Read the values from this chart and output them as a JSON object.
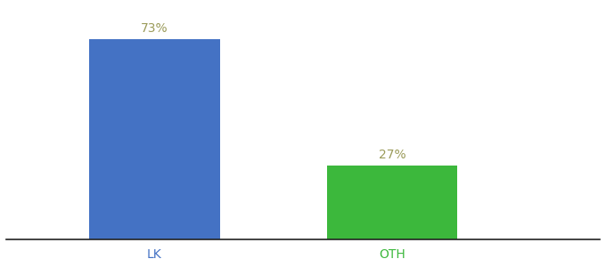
{
  "categories": [
    "LK",
    "OTH"
  ],
  "values": [
    73,
    27
  ],
  "bar_colors": [
    "#4472c4",
    "#3cb83c"
  ],
  "label_texts": [
    "73%",
    "27%"
  ],
  "ylim": [
    0,
    85
  ],
  "background_color": "#ffffff",
  "lk_tick_color": "#4472c4",
  "oth_tick_color": "#3cb83c",
  "bar_label_color": "#9b9b5a",
  "label_fontsize": 10,
  "tick_fontsize": 10,
  "figsize": [
    6.8,
    3.0
  ],
  "dpi": 100,
  "bar_positions": [
    0.25,
    0.65
  ],
  "bar_width": 0.22
}
